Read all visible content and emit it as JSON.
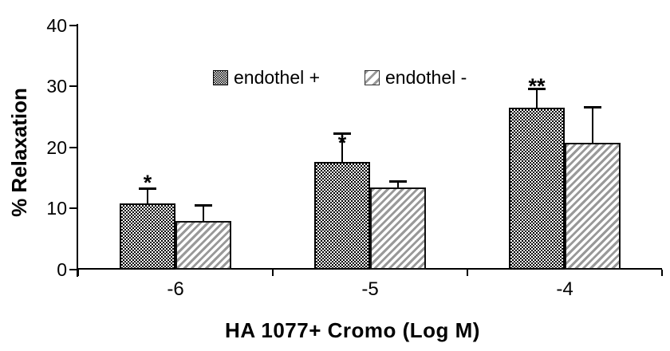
{
  "chart_data": {
    "type": "bar",
    "title": "",
    "xlabel": "HA 1077+ Cromo (Log M)",
    "ylabel": "% Relaxation",
    "categories": [
      "-6",
      "-5",
      "-4"
    ],
    "series": [
      {
        "name": "endothel +",
        "values": [
          10.8,
          17.7,
          26.5
        ],
        "errors_up": [
          2.4,
          4.5,
          3.0
        ],
        "pattern": "black-checker"
      },
      {
        "name": "endothel -",
        "values": [
          8.0,
          13.4,
          20.8
        ],
        "errors_up": [
          2.4,
          1.0,
          5.8
        ],
        "pattern": "gray-diagonal-hatch"
      }
    ],
    "annotations": [
      {
        "category": "-6",
        "series": "endothel +",
        "text": "*",
        "dy": -21
      },
      {
        "category": "-5",
        "series": "endothel +",
        "text": "*",
        "dy": -2
      },
      {
        "category": "-4",
        "series": "endothel +",
        "text": "**",
        "dy": -17
      }
    ],
    "ylim": [
      0,
      40
    ],
    "yticks": [
      0,
      10,
      20,
      30,
      40
    ],
    "grid": false,
    "legend_position": "top-center-inside",
    "error_bars": "upper-with-cap",
    "colors": {
      "axis": "#000000",
      "text": "#000000",
      "hatch_gray": "#999999",
      "background": "#ffffff"
    }
  }
}
